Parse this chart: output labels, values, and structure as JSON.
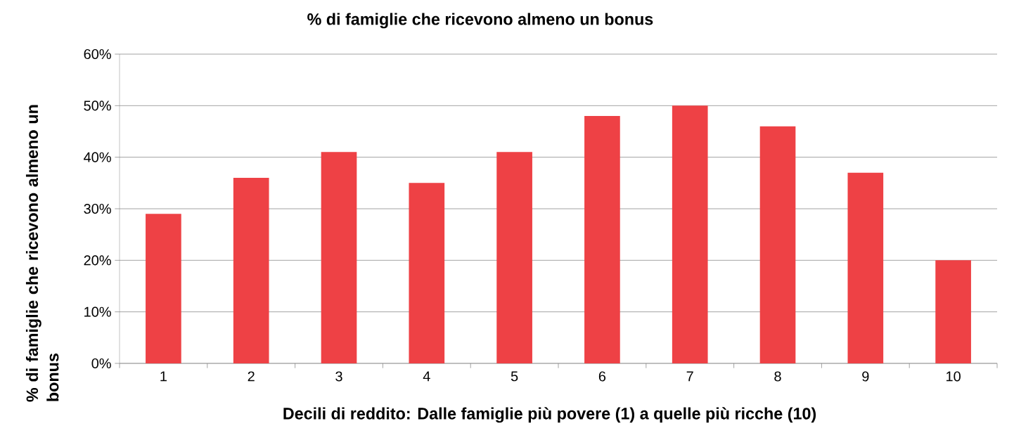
{
  "chart_data": {
    "type": "bar",
    "title": "% di famiglie che ricevono almeno un bonus",
    "xlabel": "Decili di reddito: Dalle famiglie più povere (1) a quelle più ricche (10)",
    "ylabel": "% di famiglie che ricevono almeno un bonus",
    "categories": [
      "1",
      "2",
      "3",
      "4",
      "5",
      "6",
      "7",
      "8",
      "9",
      "10"
    ],
    "values": [
      29,
      36,
      41,
      35,
      41,
      48,
      50,
      46,
      37,
      20
    ],
    "color": "#ee4145",
    "ylim": [
      0,
      60
    ],
    "yticks": [
      {
        "value": 0,
        "label": "0%"
      },
      {
        "value": 10,
        "label": "10%"
      },
      {
        "value": 20,
        "label": "20%"
      },
      {
        "value": 30,
        "label": "30%"
      },
      {
        "value": 40,
        "label": "40%"
      },
      {
        "value": 50,
        "label": "50%"
      },
      {
        "value": 60,
        "label": "60%"
      }
    ],
    "grid": "y"
  }
}
